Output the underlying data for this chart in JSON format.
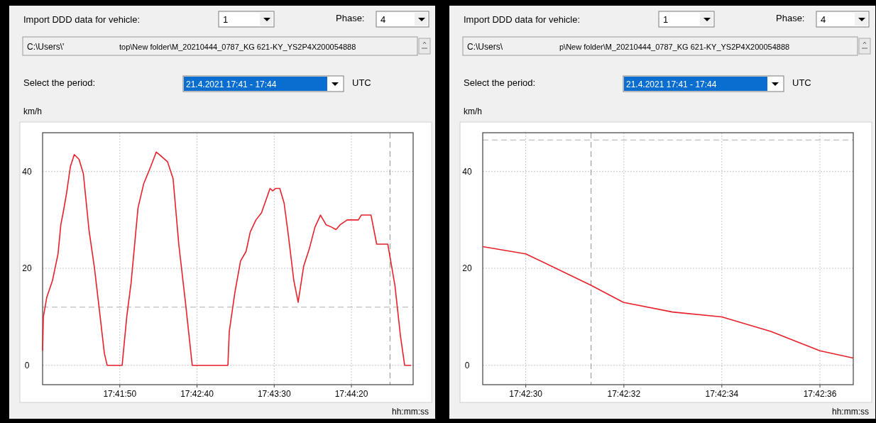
{
  "chart_data": [
    {
      "type": "line",
      "xlabel": "hh:mm:ss",
      "ylabel": "km/h",
      "annotations": [
        "Import DDD data for vehicle:",
        "1",
        "Phase:",
        "4",
        "C:\\Users\\'",
        "top\\New folder\\M_20210444_0787_KG 621-KY_YS2P4X200054888",
        "Select the period:",
        "21.4.2021 17:41 - 17:44",
        "UTC"
      ],
      "x": [
        17.68333,
        17.68347,
        17.68408,
        17.68511,
        17.68611,
        17.68661,
        17.68711,
        17.68764,
        17.68833,
        17.68903,
        17.68989,
        17.69067,
        17.69167,
        17.69267,
        17.69369,
        17.69444,
        17.69494,
        17.69764,
        17.69847,
        17.69925,
        17.7005,
        17.70153,
        17.70278,
        17.70378,
        17.70431,
        17.70581,
        17.70681,
        17.70783,
        17.70908,
        17.71025,
        17.71667,
        17.71692,
        17.71792,
        17.71894,
        17.71994,
        17.72069,
        17.72172,
        17.72272,
        17.72425,
        17.72472,
        17.72525,
        17.726,
        17.72678,
        17.72753,
        17.72853,
        17.72931,
        17.73031,
        17.73131,
        17.73233,
        17.73333,
        17.73433,
        17.73536,
        17.73611,
        17.73686,
        17.73814,
        17.74014,
        17.74067,
        17.74242,
        17.74344,
        17.74544,
        17.74672,
        17.74772,
        17.74847,
        17.74964
      ],
      "series": [
        {
          "color": "#e8202a",
          "values": [
            3,
            10,
            14,
            17.5,
            23,
            29,
            32,
            35.5,
            41,
            43.5,
            42.5,
            39.5,
            28,
            20,
            10,
            2.5,
            0,
            0,
            10,
            17,
            32.5,
            37.5,
            41,
            44,
            43.5,
            42,
            38.5,
            25,
            12.5,
            0,
            0,
            7,
            15,
            21.5,
            23.5,
            27.5,
            30,
            31.5,
            36.5,
            36,
            36.5,
            36.5,
            33.5,
            27,
            17.5,
            13,
            20.5,
            24,
            28.5,
            31,
            29,
            28.5,
            28,
            29,
            30,
            30,
            31,
            31,
            25,
            25,
            16.5,
            6,
            0,
            0
          ]
        }
      ],
      "xlim": [
        17.68333,
        17.75
      ],
      "xticks": [
        {
          "value": 17.697222,
          "label": "17:41:50"
        },
        {
          "value": 17.711111,
          "label": "17:42:40"
        },
        {
          "value": 17.725,
          "label": "17:43:30"
        },
        {
          "value": 17.738889,
          "label": "17:44:20"
        }
      ],
      "ylim": [
        -4,
        48
      ],
      "yticks": [
        0,
        20,
        40
      ],
      "grid": true,
      "marker": "none",
      "line_style": "solid",
      "ref_lines": [
        {
          "axis": "y",
          "value": 12,
          "color": "#b0b0b0",
          "line_style": "dashed"
        },
        {
          "axis": "x",
          "value": 17.745833,
          "color": "#909090",
          "line_style": "dashed"
        }
      ]
    },
    {
      "type": "line",
      "xlabel": "hh:mm:ss",
      "ylabel": "km/h",
      "annotations": [
        "Import DDD data for vehicle:",
        "1",
        "Phase:",
        "4",
        "C:\\Users\\",
        "p\\New folder\\M_20210444_0787_KG 621-KY_YS2P4X200054888",
        "Select the period:",
        "21.4.2021 17:41 - 17:44",
        "UTC"
      ],
      "x": [
        17.708089,
        17.708333,
        17.708703,
        17.708886,
        17.709164,
        17.709444,
        17.709722,
        17.71,
        17.710189
      ],
      "series": [
        {
          "color": "#e8202a",
          "values": [
            24.5,
            23,
            16.5,
            13,
            11,
            10,
            7,
            3,
            1.5
          ]
        }
      ],
      "xlim": [
        17.708089,
        17.710189
      ],
      "xticks": [
        {
          "value": 17.708333,
          "label": "17:42:30"
        },
        {
          "value": 17.708889,
          "label": "17:42:32"
        },
        {
          "value": 17.709444,
          "label": "17:42:34"
        },
        {
          "value": 17.71,
          "label": "17:42:36"
        }
      ],
      "ylim": [
        -4,
        48
      ],
      "yticks": [
        0,
        20,
        40
      ],
      "grid": true,
      "marker": "none",
      "line_style": "solid",
      "ref_lines": [
        {
          "axis": "y",
          "value": 46.5,
          "color": "#b0b0b0",
          "line_style": "dashed"
        },
        {
          "axis": "x",
          "value": 17.708703,
          "color": "#909090",
          "line_style": "dashed"
        }
      ]
    }
  ]
}
